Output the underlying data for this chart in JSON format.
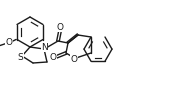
{
  "bg_color": "#ffffff",
  "line_color": "#1a1a1a",
  "line_width": 1.0,
  "font_size": 6.5,
  "fig_width": 1.83,
  "fig_height": 0.87,
  "dpi": 100,
  "xlim": [
    0,
    183
  ],
  "ylim": [
    0,
    87
  ]
}
